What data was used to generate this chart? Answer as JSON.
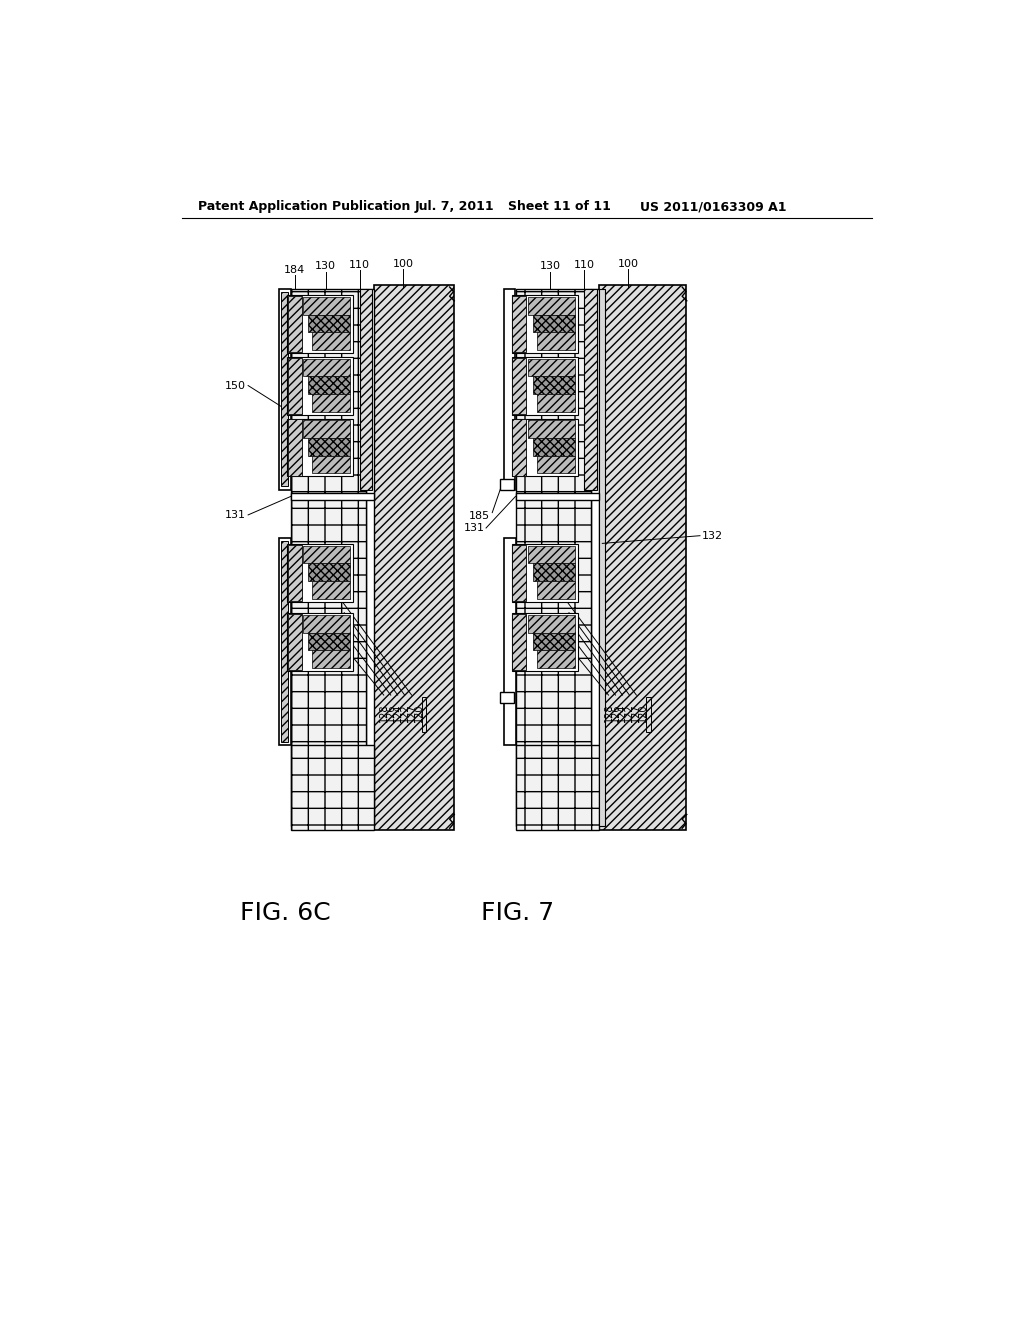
{
  "bg_color": "#ffffff",
  "header_text": "Patent Application Publication",
  "header_date": "Jul. 7, 2011",
  "header_sheet": "Sheet 11 of 11",
  "header_patent": "US 2011/0163309 A1",
  "fig6c_label": "FIG. 6C",
  "fig7_label": "FIG. 7"
}
